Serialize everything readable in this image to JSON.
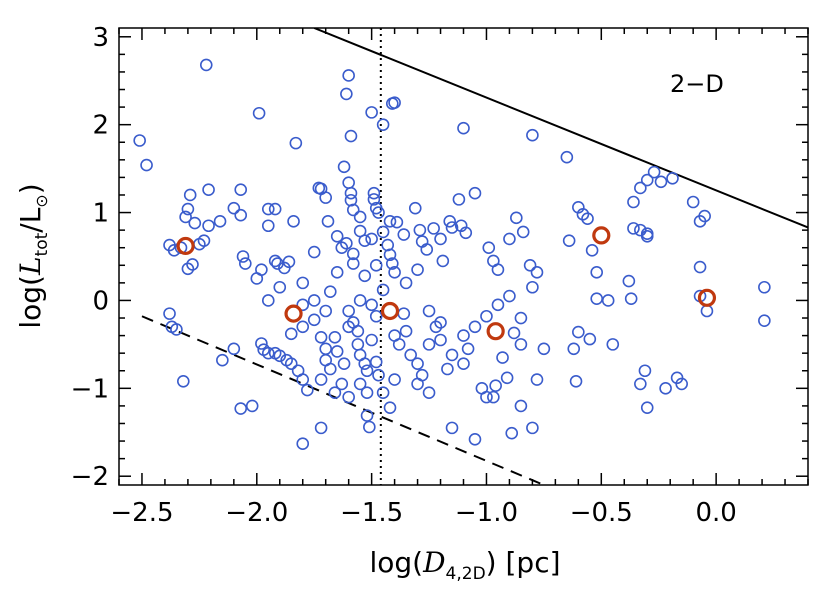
{
  "chart_data": {
    "type": "scatter",
    "panel_label": "2−D",
    "xlabel": {
      "prefix": "log(",
      "var": "D",
      "sub": "4,2D",
      "suffix": ") [pc]"
    },
    "ylabel": {
      "prefix": "log(",
      "var": "L",
      "sub": "tot",
      "mid": "/L",
      "sun": "⊙",
      "suffix": ")"
    },
    "xlim": [
      -2.6,
      0.4
    ],
    "ylim": [
      -2.1,
      3.1
    ],
    "xticks": [
      -2.5,
      -2.0,
      -1.5,
      -1.0,
      -0.5,
      0.0
    ],
    "xtick_labels": [
      "−2.5",
      "−2.0",
      "−1.5",
      "−1.0",
      "−0.5",
      "0.0"
    ],
    "yticks": [
      -2,
      -1,
      0,
      1,
      2,
      3
    ],
    "ytick_labels": [
      "−2",
      "−1",
      "0",
      "1",
      "2",
      "3"
    ],
    "colors": {
      "blue": "#3a5ccc",
      "red": "#c0390f",
      "axis": "#000000"
    },
    "vline": {
      "x": -1.46,
      "style": "dotted"
    },
    "solid_line": {
      "x": [
        -1.75,
        0.4
      ],
      "y": [
        3.1,
        0.83
      ]
    },
    "dashed_line": {
      "x": [
        -2.5,
        -0.75
      ],
      "y": [
        -0.18,
        -2.1
      ]
    },
    "red_points": [
      {
        "x": -2.31,
        "y": 0.62
      },
      {
        "x": -1.84,
        "y": -0.15
      },
      {
        "x": -1.42,
        "y": -0.12
      },
      {
        "x": -0.96,
        "y": -0.35
      },
      {
        "x": -0.5,
        "y": 0.74
      },
      {
        "x": -0.04,
        "y": 0.03
      }
    ],
    "blue_points": [
      [
        -2.51,
        1.82
      ],
      [
        -2.48,
        1.54
      ],
      [
        -2.22,
        2.68
      ],
      [
        -1.99,
        2.13
      ],
      [
        -1.6,
        2.56
      ],
      [
        -1.61,
        2.35
      ],
      [
        -1.5,
        2.14
      ],
      [
        -1.45,
        2.0
      ],
      [
        -1.4,
        2.25
      ],
      [
        -1.41,
        2.24
      ],
      [
        -1.1,
        1.96
      ],
      [
        -0.8,
        1.88
      ],
      [
        -0.65,
        1.63
      ],
      [
        -1.83,
        1.79
      ],
      [
        -1.59,
        1.87
      ],
      [
        -1.62,
        1.52
      ],
      [
        -2.38,
        0.63
      ],
      [
        -2.36,
        0.57
      ],
      [
        -2.33,
        0.6
      ],
      [
        -2.31,
        0.95
      ],
      [
        -2.3,
        1.04
      ],
      [
        -2.3,
        0.36
      ],
      [
        -2.28,
        0.41
      ],
      [
        -2.27,
        0.88
      ],
      [
        -2.29,
        1.2
      ],
      [
        -2.25,
        0.64
      ],
      [
        -2.23,
        0.68
      ],
      [
        -2.21,
        1.26
      ],
      [
        -2.21,
        0.85
      ],
      [
        -2.16,
        0.9
      ],
      [
        -2.1,
        1.05
      ],
      [
        -2.07,
        1.26
      ],
      [
        -2.07,
        0.97
      ],
      [
        -2.05,
        0.42
      ],
      [
        -2.06,
        0.5
      ],
      [
        -1.98,
        0.35
      ],
      [
        -1.95,
        1.04
      ],
      [
        -1.95,
        0.85
      ],
      [
        -1.92,
        0.45
      ],
      [
        -1.91,
        0.42
      ],
      [
        -1.88,
        0.37
      ],
      [
        -1.86,
        0.44
      ],
      [
        -1.84,
        0.9
      ],
      [
        -1.92,
        1.04
      ],
      [
        -1.8,
        0.2
      ],
      [
        -1.75,
        0.55
      ],
      [
        -1.73,
        1.28
      ],
      [
        -1.72,
        1.27
      ],
      [
        -1.7,
        1.17
      ],
      [
        -1.69,
        0.9
      ],
      [
        -1.65,
        0.73
      ],
      [
        -1.63,
        0.6
      ],
      [
        -1.61,
        0.65
      ],
      [
        -1.58,
        0.53
      ],
      [
        -1.6,
        1.34
      ],
      [
        -1.59,
        1.22
      ],
      [
        -1.59,
        1.14
      ],
      [
        -1.58,
        1.03
      ],
      [
        -1.55,
        0.95
      ],
      [
        -1.55,
        0.79
      ],
      [
        -1.53,
        0.68
      ],
      [
        -1.5,
        0.7
      ],
      [
        -1.49,
        1.22
      ],
      [
        -1.49,
        1.15
      ],
      [
        -1.48,
        1.05
      ],
      [
        -1.47,
        1.0
      ],
      [
        -1.45,
        0.78
      ],
      [
        -1.43,
        0.63
      ],
      [
        -1.42,
        0.52
      ],
      [
        -1.41,
        0.42
      ],
      [
        -1.4,
        0.32
      ],
      [
        -1.39,
        0.89
      ],
      [
        -1.36,
        0.75
      ],
      [
        -1.31,
        1.05
      ],
      [
        -1.29,
        0.8
      ],
      [
        -1.28,
        0.67
      ],
      [
        -1.26,
        0.58
      ],
      [
        -1.23,
        0.82
      ],
      [
        -1.2,
        0.7
      ],
      [
        -1.19,
        0.45
      ],
      [
        -1.16,
        0.9
      ],
      [
        -1.15,
        0.83
      ],
      [
        -1.12,
        1.15
      ],
      [
        -1.11,
        0.85
      ],
      [
        -1.09,
        0.77
      ],
      [
        -1.05,
        1.22
      ],
      [
        -0.99,
        0.6
      ],
      [
        -0.97,
        0.45
      ],
      [
        -0.95,
        0.35
      ],
      [
        -0.9,
        0.7
      ],
      [
        -0.87,
        0.94
      ],
      [
        -0.84,
        0.78
      ],
      [
        -0.81,
        0.4
      ],
      [
        -0.78,
        0.32
      ],
      [
        -0.64,
        0.68
      ],
      [
        -0.6,
        1.06
      ],
      [
        -0.58,
        0.98
      ],
      [
        -0.56,
        0.93
      ],
      [
        -0.54,
        0.57
      ],
      [
        -0.52,
        0.32
      ],
      [
        -0.36,
        1.12
      ],
      [
        -0.33,
        1.28
      ],
      [
        -0.3,
        1.37
      ],
      [
        -0.27,
        1.46
      ],
      [
        -0.24,
        1.35
      ],
      [
        -0.19,
        1.39
      ],
      [
        -0.1,
        1.12
      ],
      [
        -0.07,
        0.9
      ],
      [
        -0.05,
        0.96
      ],
      [
        -0.36,
        0.82
      ],
      [
        -0.33,
        0.8
      ],
      [
        -0.3,
        0.76
      ],
      [
        -0.3,
        0.73
      ],
      [
        -2.38,
        -0.15
      ],
      [
        -2.37,
        -0.3
      ],
      [
        -2.35,
        -0.33
      ],
      [
        -2.32,
        -0.92
      ],
      [
        -2.15,
        -0.68
      ],
      [
        -2.1,
        -0.55
      ],
      [
        -2.07,
        -1.23
      ],
      [
        -2.02,
        -1.2
      ],
      [
        -1.98,
        -0.49
      ],
      [
        -1.97,
        -0.56
      ],
      [
        -1.95,
        -0.6
      ],
      [
        -1.92,
        -0.6
      ],
      [
        -1.9,
        -0.63
      ],
      [
        -1.87,
        -0.68
      ],
      [
        -1.85,
        -0.72
      ],
      [
        -1.82,
        -0.8
      ],
      [
        -1.8,
        -1.63
      ],
      [
        -1.85,
        -0.38
      ],
      [
        -1.8,
        -0.05
      ],
      [
        -1.75,
        -0.22
      ],
      [
        -1.72,
        -0.42
      ],
      [
        -1.72,
        -1.45
      ],
      [
        -1.7,
        -0.55
      ],
      [
        -1.68,
        -0.78
      ],
      [
        -1.66,
        -1.05
      ],
      [
        -1.63,
        -0.95
      ],
      [
        -1.6,
        -0.3
      ],
      [
        -1.58,
        -0.25
      ],
      [
        -1.56,
        -0.5
      ],
      [
        -1.55,
        -0.62
      ],
      [
        -1.53,
        -0.72
      ],
      [
        -1.52,
        -0.8
      ],
      [
        -1.52,
        -1.05
      ],
      [
        -1.52,
        -1.31
      ],
      [
        -1.51,
        -1.44
      ],
      [
        -1.5,
        -0.05
      ],
      [
        -1.48,
        -0.18
      ],
      [
        -1.48,
        -0.7
      ],
      [
        -1.47,
        -0.85
      ],
      [
        -1.45,
        -1.05
      ],
      [
        -1.42,
        -1.22
      ],
      [
        -1.4,
        -0.9
      ],
      [
        -1.38,
        -0.5
      ],
      [
        -1.36,
        -0.15
      ],
      [
        -1.33,
        -0.62
      ],
      [
        -1.3,
        -0.72
      ],
      [
        -1.28,
        -0.85
      ],
      [
        -1.25,
        -0.5
      ],
      [
        -1.22,
        -0.3
      ],
      [
        -1.2,
        -0.25
      ],
      [
        -1.17,
        -0.78
      ],
      [
        -1.15,
        -1.45
      ],
      [
        -1.1,
        -0.72
      ],
      [
        -1.1,
        -0.4
      ],
      [
        -1.08,
        -0.55
      ],
      [
        -1.05,
        -1.58
      ],
      [
        -1.02,
        -1.0
      ],
      [
        -1.0,
        -1.1
      ],
      [
        -0.97,
        -1.1
      ],
      [
        -0.96,
        -0.97
      ],
      [
        -0.93,
        -0.65
      ],
      [
        -0.91,
        -0.88
      ],
      [
        -0.89,
        -1.51
      ],
      [
        -0.85,
        -1.2
      ],
      [
        -0.8,
        -1.45
      ],
      [
        -0.78,
        -0.9
      ],
      [
        -0.85,
        -0.5
      ],
      [
        -0.88,
        -0.37
      ],
      [
        -0.75,
        -0.55
      ],
      [
        -0.62,
        -0.55
      ],
      [
        -0.61,
        -0.92
      ],
      [
        -0.6,
        -0.36
      ],
      [
        -0.55,
        -0.44
      ],
      [
        -0.52,
        0.02
      ],
      [
        -0.47,
        0.0
      ],
      [
        -0.45,
        -0.5
      ],
      [
        -0.38,
        0.22
      ],
      [
        -0.37,
        0.02
      ],
      [
        -0.33,
        -0.95
      ],
      [
        -0.31,
        -0.8
      ],
      [
        -0.3,
        -1.22
      ],
      [
        -0.22,
        -1.0
      ],
      [
        -0.17,
        -0.88
      ],
      [
        -0.15,
        -0.95
      ],
      [
        -0.07,
        0.38
      ],
      [
        -0.07,
        0.05
      ],
      [
        -0.04,
        -0.12
      ],
      [
        0.21,
        0.15
      ],
      [
        0.21,
        -0.23
      ],
      [
        -1.3,
        0.35
      ],
      [
        -1.35,
        0.2
      ],
      [
        -1.45,
        0.12
      ],
      [
        -1.55,
        0.0
      ],
      [
        -1.6,
        -0.12
      ],
      [
        -1.65,
        0.32
      ],
      [
        -1.68,
        0.1
      ],
      [
        -1.75,
        0.0
      ],
      [
        -1.9,
        0.15
      ],
      [
        -1.95,
        0.0
      ],
      [
        -2.0,
        0.25
      ],
      [
        -1.8,
        -0.3
      ],
      [
        -1.7,
        -0.12
      ],
      [
        -1.25,
        -0.12
      ],
      [
        -1.2,
        -0.45
      ],
      [
        -1.15,
        -0.62
      ],
      [
        -1.35,
        -0.35
      ],
      [
        -1.4,
        -0.4
      ],
      [
        -1.5,
        -0.45
      ],
      [
        -1.55,
        -0.95
      ],
      [
        -1.6,
        -1.1
      ],
      [
        -1.65,
        -0.58
      ],
      [
        -1.7,
        -0.68
      ],
      [
        -1.8,
        -0.9
      ],
      [
        -1.42,
        0.9
      ],
      [
        -1.48,
        0.4
      ],
      [
        -1.53,
        0.28
      ],
      [
        -1.58,
        0.42
      ],
      [
        -1.05,
        -0.3
      ],
      [
        -1.0,
        -0.18
      ],
      [
        -0.95,
        -0.05
      ],
      [
        -0.9,
        0.05
      ],
      [
        -0.85,
        -0.2
      ],
      [
        -0.8,
        0.15
      ],
      [
        -1.3,
        -0.95
      ],
      [
        -1.25,
        -1.05
      ],
      [
        -1.62,
        -0.72
      ],
      [
        -1.72,
        -0.9
      ],
      [
        -1.78,
        -1.02
      ],
      [
        -1.56,
        -0.35
      ],
      [
        -1.66,
        -0.42
      ]
    ]
  }
}
